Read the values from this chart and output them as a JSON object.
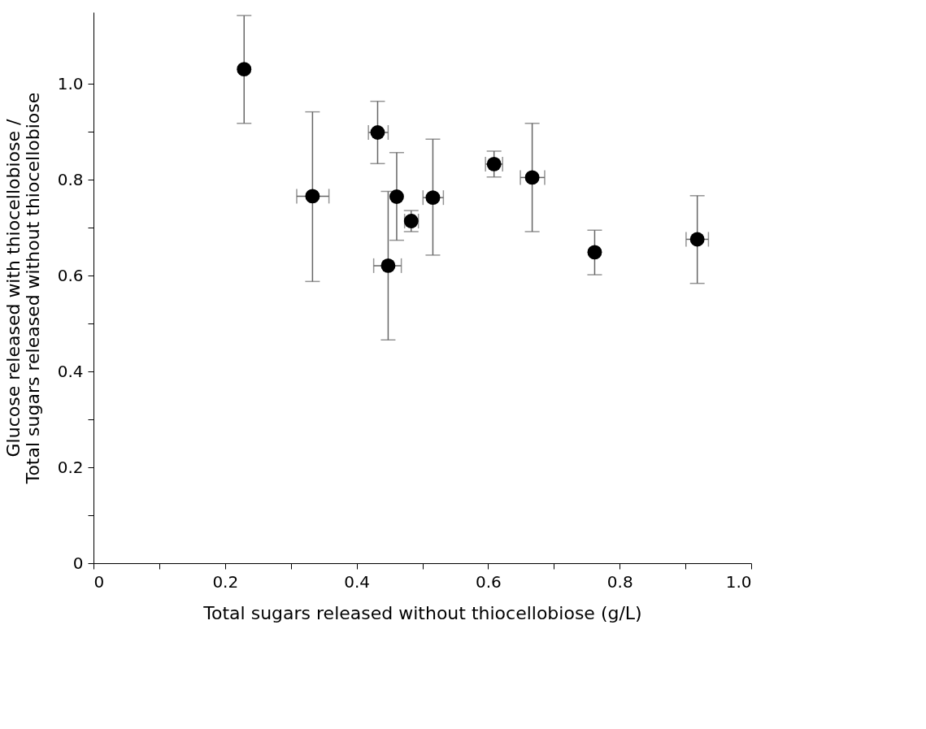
{
  "chart_data": {
    "type": "scatter",
    "xlabel": "Total sugars released without thiocellobiose (g/L)",
    "ylabel": "Glucose released with thiocellobiose / Total sugars released without thiocellobiose",
    "x": [
      0.229,
      0.333,
      0.432,
      0.448,
      0.461,
      0.483,
      0.516,
      0.609,
      0.667,
      0.762,
      0.918
    ],
    "values": [
      1.031,
      0.766,
      0.899,
      0.621,
      0.765,
      0.714,
      0.763,
      0.833,
      0.805,
      0.649,
      0.676
    ],
    "errors": [
      [
        0.918,
        1.143
      ],
      [
        0.588,
        0.942
      ],
      [
        0.834,
        0.964
      ],
      [
        0.466,
        0.776
      ],
      [
        0.674,
        0.857
      ],
      [
        0.692,
        0.736
      ],
      [
        0.643,
        0.885
      ],
      [
        0.806,
        0.86
      ],
      [
        0.692,
        0.918
      ],
      [
        0.602,
        0.695
      ],
      [
        0.584,
        0.767
      ]
    ],
    "xerrors": [
      null,
      [
        0.309,
        0.358
      ],
      [
        0.418,
        0.448
      ],
      [
        0.426,
        0.468
      ],
      null,
      [
        0.473,
        0.494
      ],
      [
        0.501,
        0.532
      ],
      [
        0.596,
        0.622
      ],
      [
        0.649,
        0.686
      ],
      null,
      [
        0.901,
        0.935
      ]
    ],
    "color": "#000000",
    "marker": "circle",
    "grid": false,
    "xlim": [
      0,
      1.0
    ],
    "ylim": [
      0,
      1.15
    ],
    "xticks": [
      0,
      {
        "value": 0.1,
        "label": null
      },
      0.2,
      {
        "value": 0.3,
        "label": null
      },
      0.4,
      {
        "value": 0.5,
        "label": null
      },
      0.6,
      {
        "value": 0.7,
        "label": null
      },
      0.8,
      {
        "value": 0.9,
        "label": null
      },
      {
        "value": 1.0,
        "label": "1.0"
      }
    ],
    "yticks": [
      0,
      {
        "value": 0.1,
        "label": null
      },
      0.2,
      {
        "value": 0.3,
        "label": null
      },
      0.4,
      {
        "value": 0.5,
        "label": null
      },
      0.6,
      {
        "value": 0.7,
        "label": null
      },
      0.8,
      {
        "value": 0.9,
        "label": null
      },
      {
        "value": 1.0,
        "label": "1.0"
      }
    ]
  }
}
